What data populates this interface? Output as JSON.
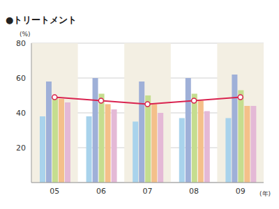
{
  "chart_data": {
    "type": "bar",
    "title": "●トリートメント",
    "y_label": "(%)",
    "x_label": "(年)",
    "categories": [
      "05",
      "06",
      "07",
      "08",
      "09"
    ],
    "series": [
      {
        "color": "#a9d3ec",
        "values": [
          38,
          38,
          35,
          37,
          37
        ]
      },
      {
        "color": "#9fb0d8",
        "values": [
          58,
          60,
          58,
          60,
          62
        ]
      },
      {
        "color": "#c5dd8f",
        "values": [
          49,
          51,
          50,
          51,
          53
        ]
      },
      {
        "color": "#f4c08a",
        "values": [
          48,
          45,
          45,
          47,
          44
        ]
      },
      {
        "color": "#e4b9d6",
        "values": [
          46,
          42,
          40,
          41,
          44
        ]
      },
      {
        "type": "line",
        "color": "#d9234f",
        "marker": "circle",
        "values": [
          49,
          47,
          45,
          47,
          49
        ]
      }
    ],
    "ylim": [
      0,
      80
    ],
    "yticks": [
      20,
      40,
      60,
      80
    ],
    "grid": true
  }
}
